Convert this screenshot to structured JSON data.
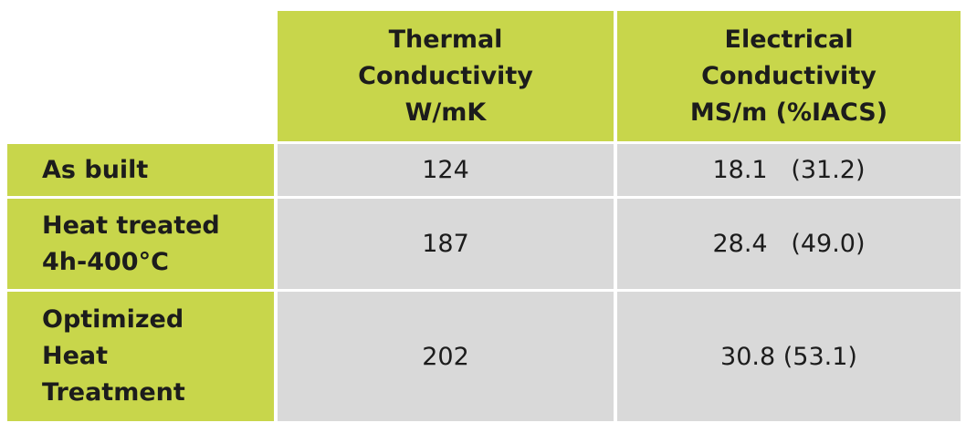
{
  "table": {
    "columns": [
      [
        "Thermal",
        "Conductivity",
        "W/mK"
      ],
      [
        "Electrical",
        "Conductivity",
        "MS/m (%IACS)"
      ]
    ],
    "rows": [
      {
        "label": [
          "As built"
        ],
        "values": [
          "124",
          "18.1   (31.2)"
        ]
      },
      {
        "label": [
          "Heat treated",
          "4h-400°C"
        ],
        "values": [
          "187",
          "28.4   (49.0)"
        ]
      },
      {
        "label": [
          "Optimized",
          "Heat",
          "Treatment"
        ],
        "values": [
          "202",
          "30.8 (53.1)"
        ]
      }
    ]
  }
}
